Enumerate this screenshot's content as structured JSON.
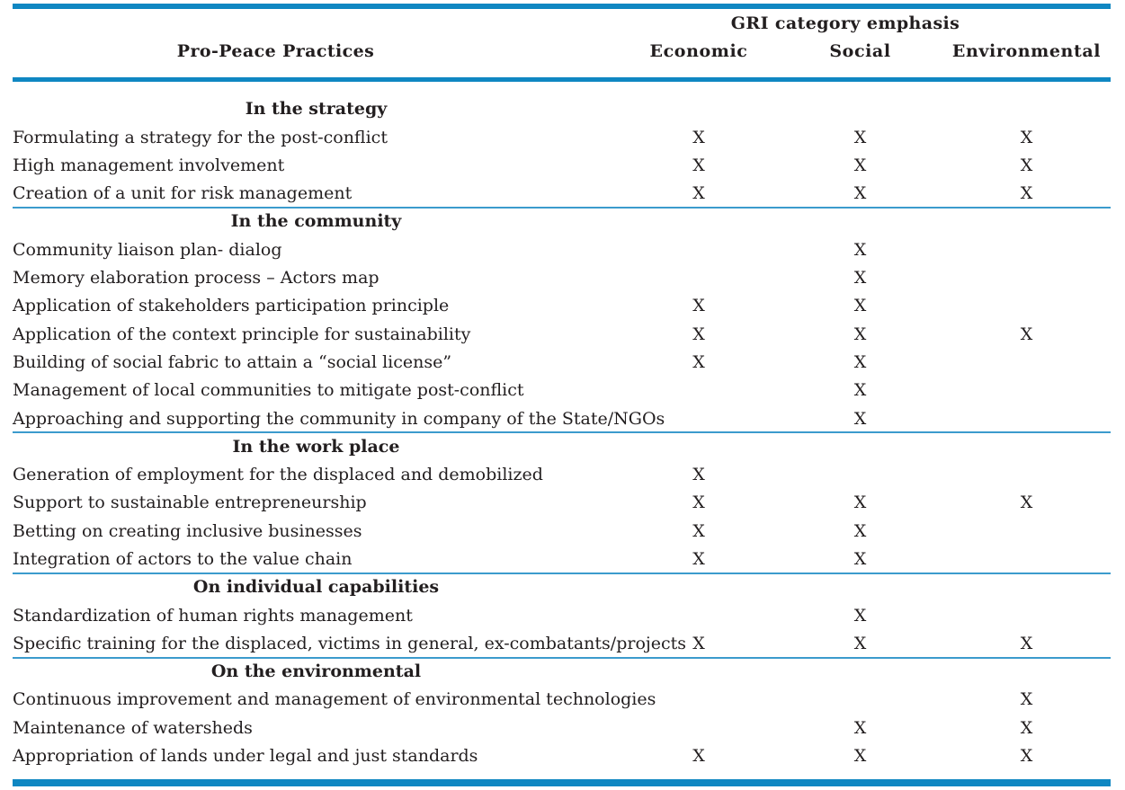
{
  "colors": {
    "accent_blue": "#0f87c2",
    "divider_blue": "#3b9bcd",
    "text": "#221e1f",
    "background": "#ffffff"
  },
  "table": {
    "group_header": "GRI category emphasis",
    "practices_header": "Pro-Peace Practices",
    "columns": [
      "Economic",
      "Social",
      "Environmental"
    ],
    "mark_symbol": "X",
    "sections": [
      {
        "header": "In the strategy",
        "rows": [
          {
            "practice": "Formulating a strategy for the post-conflict",
            "marks": [
              "X",
              "X",
              "X"
            ]
          },
          {
            "practice": "High management involvement",
            "marks": [
              "X",
              "X",
              "X"
            ]
          },
          {
            "practice": "Creation of a unit for risk management",
            "marks": [
              "X",
              "X",
              "X"
            ]
          }
        ]
      },
      {
        "header": "In the community",
        "rows": [
          {
            "practice": "Community liaison plan- dialog",
            "marks": [
              "",
              "X",
              ""
            ]
          },
          {
            "practice": "Memory elaboration process – Actors map",
            "marks": [
              "",
              "X",
              ""
            ]
          },
          {
            "practice": "Application of stakeholders participation principle",
            "marks": [
              "X",
              "X",
              ""
            ]
          },
          {
            "practice": "Application of the context principle for sustainability",
            "marks": [
              "X",
              "X",
              "X"
            ]
          },
          {
            "practice": "Building of social fabric to attain a “social license”",
            "marks": [
              "X",
              "X",
              ""
            ]
          },
          {
            "practice": "Management of local communities to mitigate post-conflict",
            "marks": [
              "",
              "X",
              ""
            ]
          },
          {
            "practice": "Approaching and supporting the community in company of the State/NGOs",
            "marks": [
              "",
              "X",
              ""
            ]
          }
        ]
      },
      {
        "header": "In the work place",
        "rows": [
          {
            "practice": "Generation of employment for the displaced and demobilized",
            "marks": [
              "X",
              "",
              ""
            ]
          },
          {
            "practice": "Support to sustainable entrepreneurship",
            "marks": [
              "X",
              "X",
              "X"
            ]
          },
          {
            "practice": "Betting on creating inclusive businesses",
            "marks": [
              "X",
              "X",
              ""
            ]
          },
          {
            "practice": "Integration of actors to the value chain",
            "marks": [
              "X",
              "X",
              ""
            ]
          }
        ]
      },
      {
        "header": "On individual capabilities",
        "rows": [
          {
            "practice": "Standardization of human rights management",
            "marks": [
              "",
              "X",
              ""
            ]
          },
          {
            "practice": "Specific training for the displaced, victims in general, ex-combatants/projects",
            "marks": [
              "X",
              "X",
              "X"
            ]
          }
        ]
      },
      {
        "header": "On the environmental",
        "rows": [
          {
            "practice": "Continuous improvement and management of environmental technologies",
            "marks": [
              "",
              "",
              "X"
            ]
          },
          {
            "practice": "Maintenance of watersheds",
            "marks": [
              "",
              "X",
              "X"
            ]
          },
          {
            "practice": "Appropriation of lands under legal and just standards",
            "marks": [
              "X",
              "X",
              "X"
            ]
          }
        ]
      }
    ]
  }
}
